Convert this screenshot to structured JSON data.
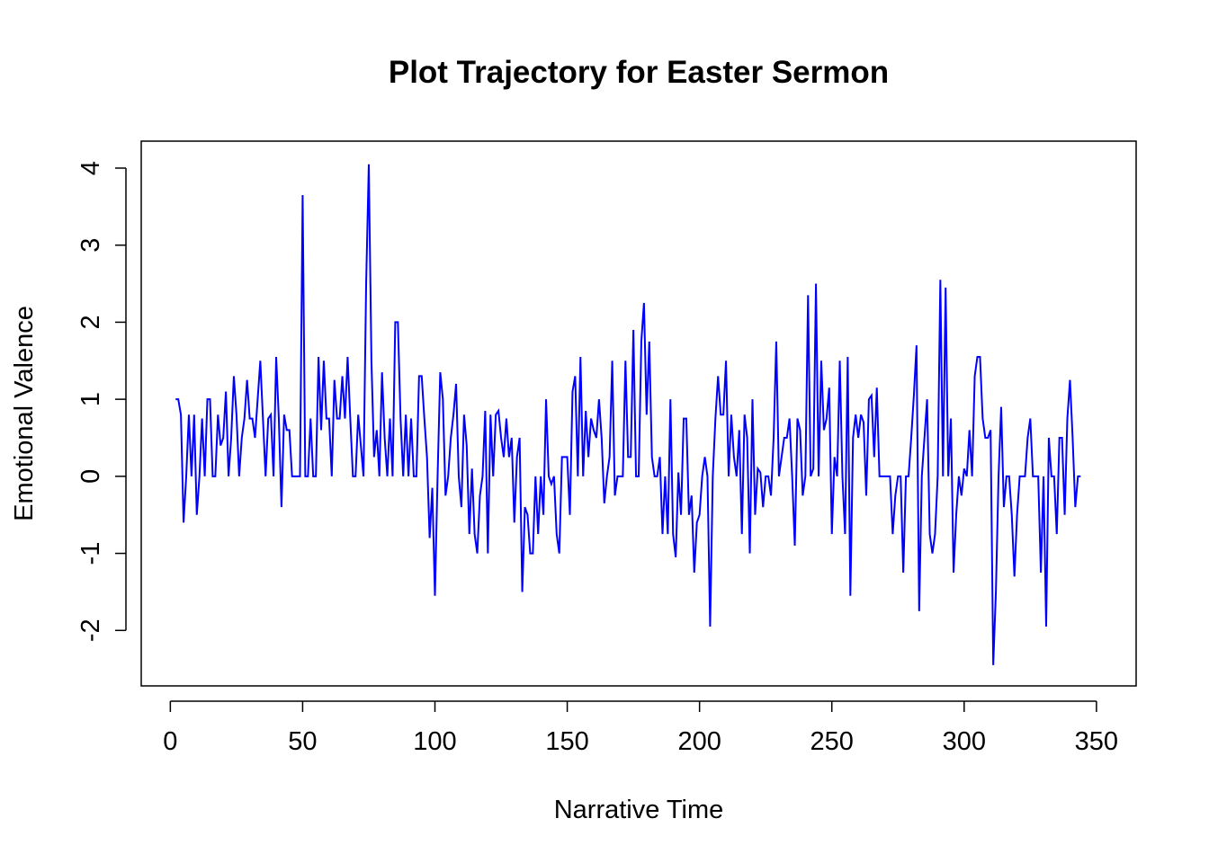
{
  "chart_data": {
    "type": "line",
    "title": "Plot Trajectory for Easter Sermon",
    "xlabel": "Narrative Time",
    "ylabel": "Emotional Valence",
    "xlim": [
      -11,
      365
    ],
    "ylim": [
      -2.72,
      4.35
    ],
    "x_ticks": [
      0,
      50,
      100,
      150,
      200,
      250,
      300,
      350
    ],
    "y_ticks": [
      -2,
      -1,
      0,
      1,
      2,
      3,
      4
    ],
    "x_tick_labels": [
      "0",
      "50",
      "100",
      "150",
      "200",
      "250",
      "300",
      "350"
    ],
    "y_tick_labels": [
      "-2",
      "-1",
      "0",
      "1",
      "2",
      "3",
      "4"
    ],
    "grid": false,
    "series": [
      {
        "color": "#0000FF",
        "x_start": 2,
        "x_step": 1,
        "values": [
          1,
          1,
          0.8,
          -0.6,
          0,
          0.8,
          0,
          0.8,
          -0.5,
          0,
          0.75,
          0,
          1,
          1,
          0,
          0,
          0.8,
          0.4,
          0.5,
          1.1,
          0,
          0.5,
          1.3,
          0.8,
          0,
          0.5,
          0.75,
          1.25,
          0.75,
          0.75,
          0.5,
          1,
          1.5,
          0.75,
          0,
          0.75,
          0.8,
          0,
          1.55,
          0.75,
          -0.4,
          0.8,
          0.6,
          0.6,
          0,
          0,
          0,
          0,
          3.65,
          0,
          0,
          0.75,
          0,
          0,
          1.55,
          0.6,
          1.5,
          0.75,
          0.75,
          0,
          1.25,
          0.75,
          0.75,
          1.3,
          0.75,
          1.55,
          0.75,
          0,
          0,
          0.8,
          0.4,
          0,
          2.5,
          4.05,
          1.5,
          0.25,
          0.6,
          0,
          1.35,
          0.5,
          0,
          0.75,
          0,
          2,
          2,
          0.75,
          0,
          0.8,
          0,
          0.75,
          0,
          0,
          1.3,
          1.3,
          0.75,
          0.25,
          -0.8,
          -0.15,
          -1.55,
          0,
          1.35,
          1,
          -0.25,
          0,
          0.5,
          0.8,
          1.2,
          0,
          -0.4,
          0.8,
          0.4,
          -0.75,
          0.1,
          -0.75,
          -1,
          -0.25,
          0,
          0.85,
          -1,
          0.8,
          0,
          0.8,
          0.85,
          0.5,
          0.25,
          0.75,
          0.25,
          0.5,
          -0.6,
          0.25,
          0.5,
          -1.5,
          -0.4,
          -0.5,
          -1,
          -1,
          0,
          -0.75,
          0,
          -0.5,
          1,
          0,
          -0.1,
          0,
          -0.75,
          -1,
          0.25,
          0.25,
          0.25,
          -0.5,
          1.1,
          1.3,
          0,
          1.55,
          0,
          0.85,
          0.25,
          0.75,
          0.6,
          0.5,
          1,
          0.5,
          -0.35,
          0,
          0.25,
          1.5,
          -0.25,
          0,
          0,
          0,
          1.5,
          0.25,
          0.25,
          1.9,
          0,
          0,
          1.75,
          2.25,
          0.8,
          1.75,
          0.25,
          0,
          0,
          0.25,
          -0.75,
          0,
          -0.75,
          1,
          -0.75,
          -1.05,
          0.05,
          -0.5,
          0.75,
          0.75,
          -0.5,
          -0.25,
          -1.25,
          -0.6,
          -0.5,
          0,
          0.25,
          0,
          -1.95,
          0,
          0.75,
          1.3,
          0.8,
          0.8,
          1.5,
          0,
          0.8,
          0.25,
          0,
          0.6,
          -0.75,
          0.8,
          0.5,
          -1,
          1,
          -0.5,
          0.1,
          0.05,
          -0.4,
          0,
          0,
          -0.25,
          0.5,
          1.75,
          0,
          0.25,
          0.5,
          0.5,
          0.75,
          0,
          -0.9,
          0.75,
          0.6,
          -0.25,
          0,
          2.35,
          0,
          0.1,
          2.5,
          0,
          1.5,
          0.6,
          0.75,
          1.15,
          -0.75,
          0.25,
          0,
          1.5,
          0,
          -0.75,
          1.55,
          -1.55,
          0.5,
          0.8,
          0.5,
          0.8,
          0.7,
          -0.25,
          1,
          1.05,
          0.25,
          1.15,
          0,
          0,
          0,
          0,
          0,
          -0.75,
          -0.25,
          0,
          0,
          -1.25,
          0,
          0,
          0.5,
          1.05,
          1.7,
          -1.75,
          0,
          0.5,
          1,
          -0.75,
          -1,
          -0.75,
          0,
          2.55,
          0,
          2.45,
          0,
          0.75,
          -1.25,
          -0.5,
          0,
          -0.25,
          0.1,
          0,
          0.6,
          0,
          1.3,
          1.55,
          1.55,
          0.75,
          0.5,
          0.5,
          0.6,
          -2.45,
          -1.5,
          0,
          0.9,
          -0.4,
          0,
          0,
          -0.5,
          -1.3,
          -0.5,
          0,
          0,
          0,
          0.5,
          0.75,
          0,
          0,
          0,
          -1.25,
          0,
          -1.95,
          0.5,
          0,
          0,
          -0.75,
          0.5,
          0.5,
          -0.5,
          0.75,
          1.25,
          0.5,
          -0.4,
          0,
          0
        ]
      }
    ]
  }
}
